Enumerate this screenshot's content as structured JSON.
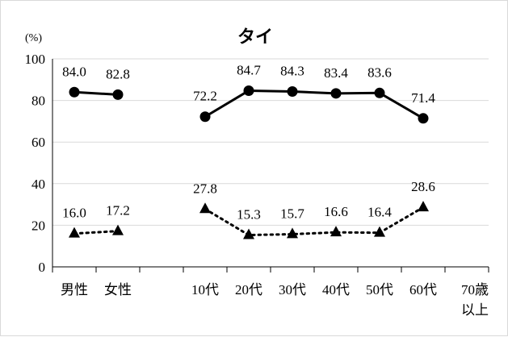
{
  "chart_data": {
    "type": "line",
    "title": "タイ",
    "ylabel": "(%)",
    "ylim": [
      0,
      100
    ],
    "yticks": [
      0,
      20,
      40,
      60,
      80,
      100
    ],
    "grid": true,
    "categories": [
      "男性",
      "女性",
      "",
      "10代",
      "20代",
      "30代",
      "40代",
      "50代",
      "60代",
      "70歳\n以上"
    ],
    "series": [
      {
        "style": "solid",
        "marker": "circle",
        "segments": [
          [
            0,
            1
          ],
          [
            3,
            4,
            5,
            6,
            7,
            8
          ]
        ],
        "values": [
          84.0,
          82.8,
          null,
          72.2,
          84.7,
          84.3,
          83.4,
          83.6,
          71.4,
          null
        ],
        "labels": [
          "84.0",
          "82.8",
          null,
          "72.2",
          "84.7",
          "84.3",
          "83.4",
          "83.6",
          "71.4",
          null
        ]
      },
      {
        "style": "dotted",
        "marker": "triangle",
        "segments": [
          [
            0,
            1
          ],
          [
            3,
            4,
            5,
            6,
            7,
            8
          ]
        ],
        "values": [
          16.0,
          17.2,
          null,
          27.8,
          15.3,
          15.7,
          16.6,
          16.4,
          28.6,
          null
        ],
        "labels": [
          "16.0",
          "17.2",
          null,
          "27.8",
          "15.3",
          "15.7",
          "16.6",
          "16.4",
          "28.6",
          null
        ]
      }
    ],
    "colors": {
      "line": "#000000",
      "grid": "#d9d9d9",
      "axis": "#000000"
    }
  }
}
